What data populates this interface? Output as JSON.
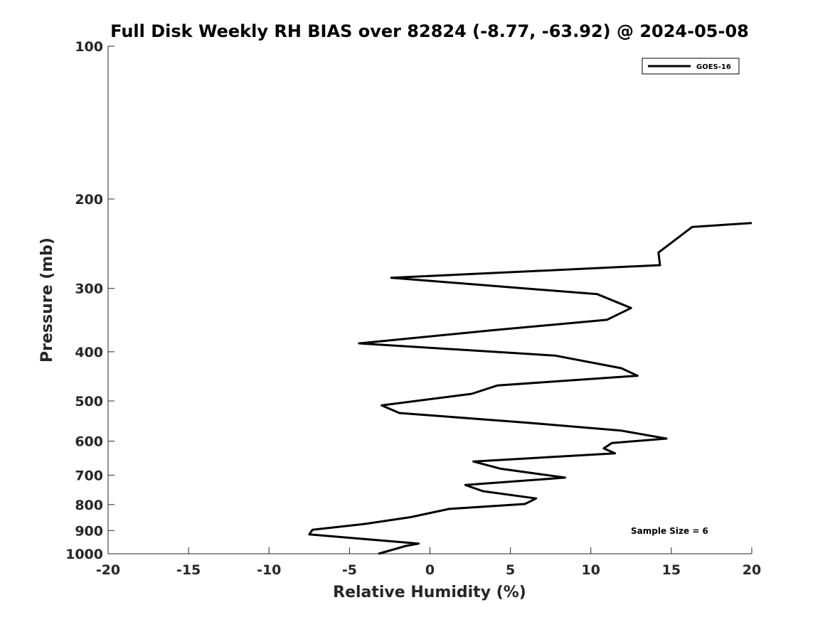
{
  "chart_data": {
    "type": "line",
    "title": "Full Disk Weekly RH BIAS over 82824 (-8.77, -63.92) @ 2024-05-08",
    "xlabel": "Relative Humidity (%)",
    "ylabel": "Pressure (mb)",
    "xlim": [
      -20,
      20
    ],
    "ylim": [
      100,
      1000
    ],
    "y_scale": "log",
    "y_reversed": true,
    "x_ticks": [
      -20,
      -15,
      -10,
      -5,
      0,
      5,
      10,
      15,
      20
    ],
    "y_ticks": [
      100,
      200,
      300,
      400,
      500,
      600,
      700,
      800,
      900,
      1000
    ],
    "grid": false,
    "legend_position": "top-right",
    "annotation": "Sample Size = 6",
    "series": [
      {
        "name": "GOES-16",
        "color": "#000000",
        "x": [
          20.0,
          16.3,
          14.2,
          14.3,
          -2.4,
          10.4,
          12.5,
          11.0,
          3.8,
          -4.4,
          7.8,
          11.9,
          12.9,
          4.2,
          2.6,
          -3.0,
          -1.9,
          6.1,
          11.9,
          14.7,
          11.3,
          10.8,
          11.5,
          2.7,
          4.4,
          8.4,
          2.2,
          3.3,
          6.6,
          5.9,
          1.2,
          -1.2,
          -4.0,
          -7.3,
          -7.5,
          -0.7,
          -1.5,
          -3.2
        ],
        "y": [
          223,
          227,
          255,
          270,
          286,
          308,
          328,
          346,
          363,
          385,
          407,
          431,
          446,
          466,
          484,
          510,
          528,
          552,
          572,
          593,
          605,
          620,
          634,
          658,
          680,
          708,
          732,
          753,
          778,
          798,
          816,
          847,
          873,
          897,
          916,
          955,
          965,
          1000
        ]
      }
    ]
  }
}
